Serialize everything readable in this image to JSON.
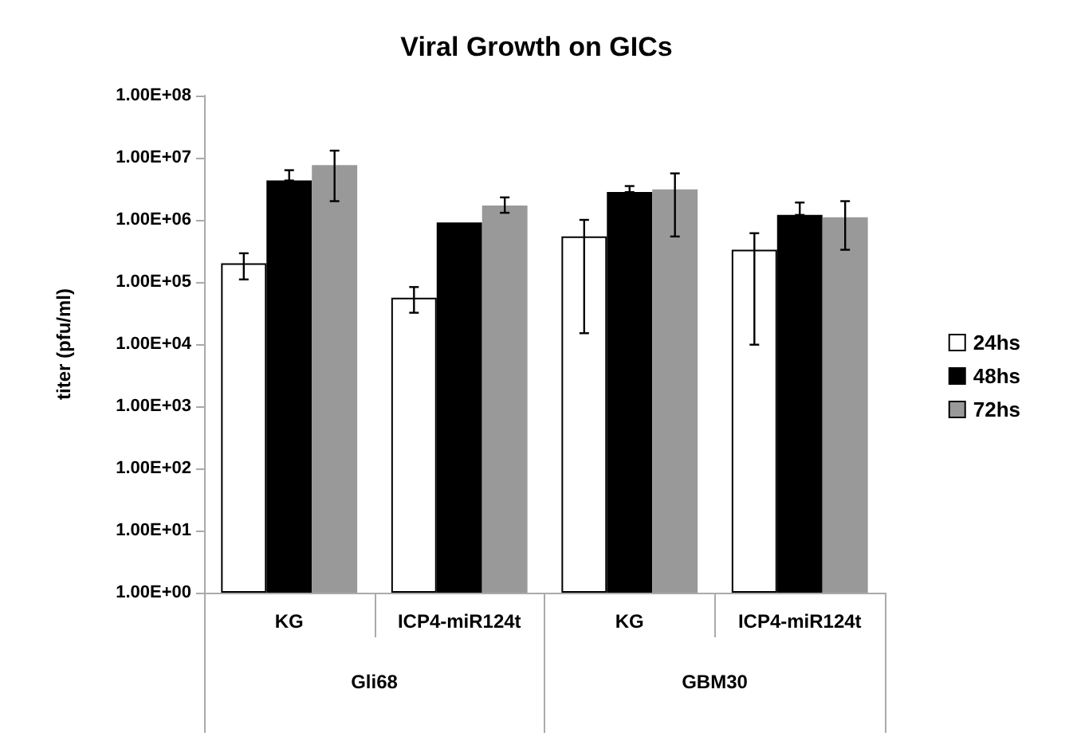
{
  "chart_data": {
    "type": "bar",
    "title": "Viral Growth on GICs",
    "ylabel": "titer (pfu/ml)",
    "categories": [
      "KG",
      "ICP4-miR124t",
      "KG",
      "ICP4-miR124t"
    ],
    "annotations": [
      "Gli68",
      "GBM30"
    ],
    "series": [
      {
        "name": "24hs",
        "color": "#ffffff",
        "values": [
          200000,
          56000,
          540000,
          330000
        ],
        "errors": [
          [
            110000,
            290000
          ],
          [
            32000,
            83000
          ],
          [
            15000,
            1000000
          ],
          [
            9800,
            610000
          ]
        ]
      },
      {
        "name": "48hs",
        "color": "#000000",
        "values": [
          4300000,
          910000,
          2800000,
          1200000
        ],
        "errors": [
          [
            4300000,
            6300000
          ],
          null,
          [
            2800000,
            3500000
          ],
          [
            1200000,
            1900000
          ]
        ]
      },
      {
        "name": "72hs",
        "color": "#999999",
        "values": [
          7600000,
          1700000,
          3100000,
          1100000
        ],
        "errors": [
          [
            2000000,
            13000000
          ],
          [
            1300000,
            2300000
          ],
          [
            540000,
            5600000
          ],
          [
            330000,
            2000000
          ]
        ]
      }
    ],
    "log": true,
    "ylim": [
      1,
      100000000
    ],
    "yticks": [
      {
        "value": 1,
        "label": "1.00E+00"
      },
      {
        "value": 10,
        "label": "1.00E+01"
      },
      {
        "value": 100,
        "label": "1.00E+02"
      },
      {
        "value": 1000,
        "label": "1.00E+03"
      },
      {
        "value": 10000,
        "label": "1.00E+04"
      },
      {
        "value": 100000,
        "label": "1.00E+05"
      },
      {
        "value": 1000000,
        "label": "1.00E+06"
      },
      {
        "value": 10000000,
        "label": "1.00E+07"
      },
      {
        "value": 100000000,
        "label": "1.00E+08"
      }
    ],
    "grid": false,
    "legend": "right"
  }
}
